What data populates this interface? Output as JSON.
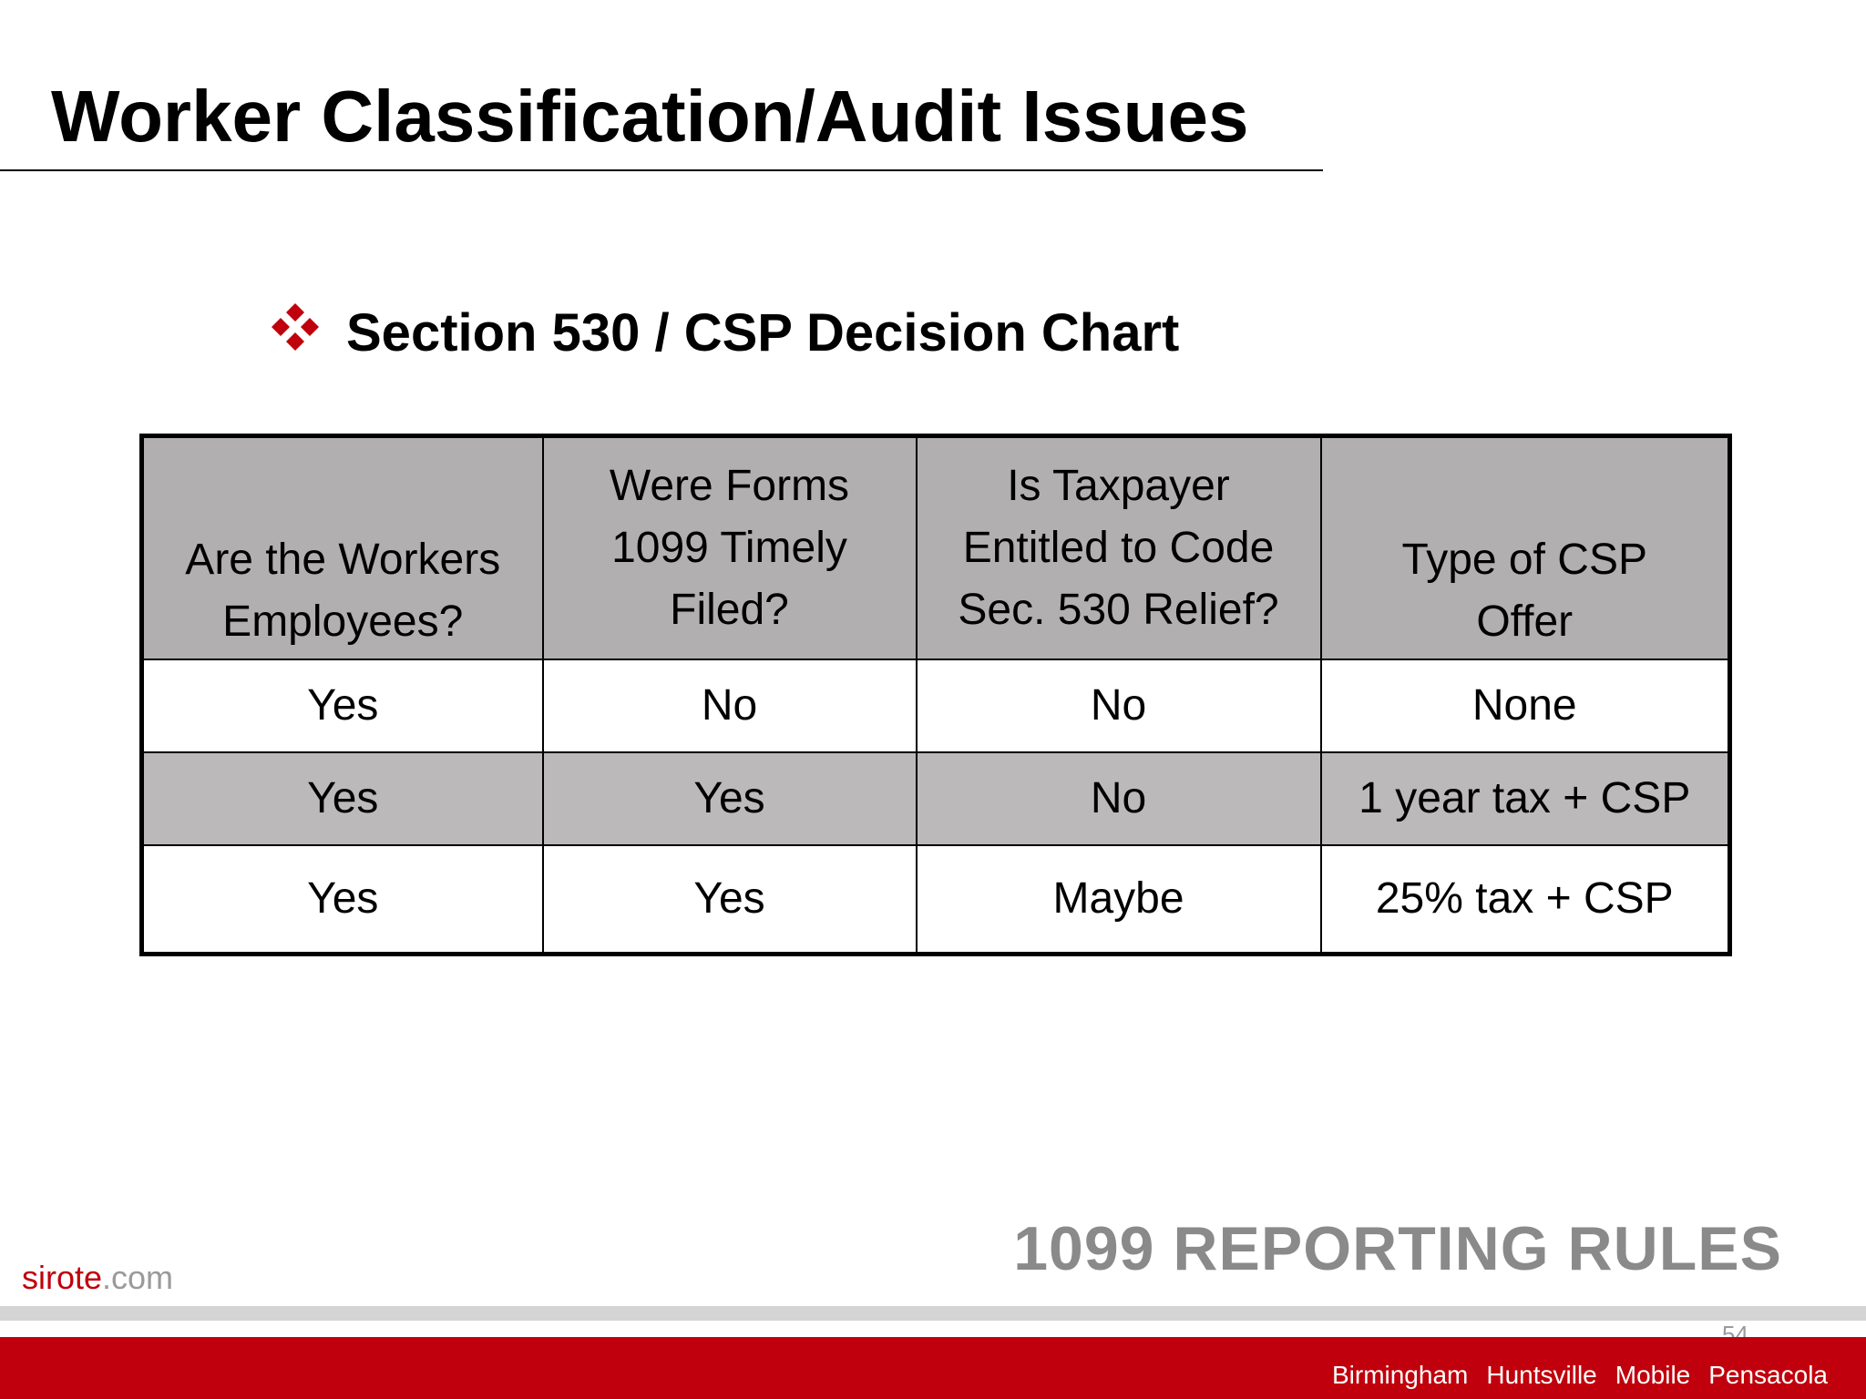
{
  "slide": {
    "title": "Worker Classification/Audit Issues",
    "subtitle": "Section 530 / CSP Decision Chart",
    "bullet_icon": "four-diamond-bullet-icon"
  },
  "table": {
    "headers": [
      "Are the Workers\nEmployees?",
      "Were Forms\n1099 Timely\nFiled?",
      "Is Taxpayer\nEntitled to Code\nSec. 530 Relief?",
      "Type of CSP\nOffer"
    ],
    "rows": [
      [
        "Yes",
        "No",
        "No",
        "None"
      ],
      [
        "Yes",
        "Yes",
        "No",
        "1 year tax + CSP"
      ],
      [
        "Yes",
        "Yes",
        "Maybe",
        "25% tax + CSP"
      ]
    ]
  },
  "footer": {
    "heading": "1099 REPORTING RULES",
    "logo_brand": "sirote",
    "logo_tld": ".com",
    "page_number": "54",
    "offices": [
      "Birmingham",
      "Huntsville",
      "Mobile",
      "Pensacola"
    ]
  },
  "colors": {
    "accent_red": "#c0000c",
    "header_grey": "#b1afb0",
    "row_grey": "#bbb9ba",
    "footer_heading_grey": "#8a8a8a"
  }
}
